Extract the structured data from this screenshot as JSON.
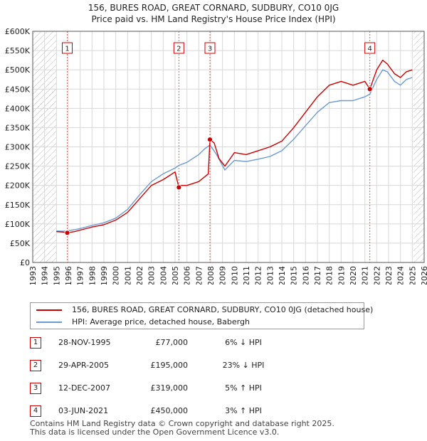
{
  "title_line1": "156, BURES ROAD, GREAT CORNARD, SUDBURY, CO10 0JG",
  "title_line2": "Price paid vs. HM Land Registry's House Price Index (HPI)",
  "colors": {
    "property": "#cc0000",
    "hpi": "#6b9bd2",
    "hatch": "#bbbbbb",
    "grid": "#d8d8d8",
    "marker_line": "#e06060"
  },
  "legend": {
    "property_label": "156, BURES ROAD, GREAT CORNARD, SUDBURY, CO10 0JG (detached house)",
    "hpi_label": "HPI: Average price, detached house, Babergh"
  },
  "transactions": [
    {
      "num": "1",
      "date": "28-NOV-1995",
      "price": "£77,000",
      "hpi": "6% ↓ HPI"
    },
    {
      "num": "2",
      "date": "29-APR-2005",
      "price": "£195,000",
      "hpi": "23% ↓ HPI"
    },
    {
      "num": "3",
      "date": "12-DEC-2007",
      "price": "£319,000",
      "hpi": "5% ↑ HPI"
    },
    {
      "num": "4",
      "date": "03-JUN-2021",
      "price": "£450,000",
      "hpi": "3% ↑ HPI"
    }
  ],
  "footer": {
    "line1": "Contains HM Land Registry data © Crown copyright and database right 2025.",
    "line2": "This data is licensed under the Open Government Licence v3.0."
  },
  "chart_data": {
    "type": "line",
    "title": "156, BURES ROAD, GREAT CORNARD, SUDBURY, CO10 0JG — Price paid vs. HM Land Registry's House Price Index (HPI)",
    "xlabel": "",
    "ylabel": "",
    "xlim": [
      1993,
      2026
    ],
    "ylim": [
      0,
      600000
    ],
    "x_ticks": [
      1993,
      1994,
      1995,
      1996,
      1997,
      1998,
      1999,
      2000,
      2001,
      2002,
      2003,
      2004,
      2005,
      2006,
      2007,
      2008,
      2009,
      2010,
      2011,
      2012,
      2013,
      2014,
      2015,
      2016,
      2017,
      2018,
      2019,
      2020,
      2021,
      2022,
      2023,
      2024,
      2025,
      2026
    ],
    "y_ticks": [
      0,
      50000,
      100000,
      150000,
      200000,
      250000,
      300000,
      350000,
      400000,
      450000,
      500000,
      550000,
      600000
    ],
    "y_tick_labels": [
      "£0",
      "£50K",
      "£100K",
      "£150K",
      "£200K",
      "£250K",
      "£300K",
      "£350K",
      "£400K",
      "£450K",
      "£500K",
      "£550K",
      "£600K"
    ],
    "hatched_ranges": [
      [
        1993,
        1995.0
      ],
      [
        2025.1,
        2026
      ]
    ],
    "series": [
      {
        "name": "156, BURES ROAD, GREAT CORNARD, SUDBURY, CO10 0JG (detached house)",
        "x": [
          1995.0,
          1995.5,
          1995.91,
          1996.5,
          1997,
          1998,
          1999,
          2000,
          2001,
          2002,
          2003,
          2004,
          2004.5,
          2005.0,
          2005.32,
          2005.33,
          2006,
          2007,
          2007.8,
          2007.94,
          2008.3,
          2008.7,
          2009.2,
          2010,
          2011,
          2012,
          2013,
          2014,
          2015,
          2016,
          2017,
          2018,
          2019,
          2020,
          2021.0,
          2021.42,
          2022,
          2022.5,
          2022.9,
          2023.5,
          2024,
          2024.5,
          2025.0
        ],
        "y": [
          80000,
          79000,
          77000,
          80000,
          84000,
          92000,
          98000,
          110000,
          130000,
          165000,
          200000,
          215000,
          225000,
          235000,
          195000,
          200000,
          200000,
          210000,
          230000,
          319000,
          310000,
          270000,
          250000,
          285000,
          280000,
          290000,
          300000,
          315000,
          350000,
          390000,
          430000,
          460000,
          470000,
          460000,
          470000,
          450000,
          500000,
          525000,
          515000,
          490000,
          480000,
          495000,
          500000
        ]
      },
      {
        "name": "HPI: Average price, detached house, Babergh",
        "x": [
          1995.0,
          1995.5,
          1995.91,
          1996.5,
          1997,
          1998,
          1999,
          2000,
          2001,
          2002,
          2003,
          2004,
          2005.0,
          2005.32,
          2006,
          2007,
          2007.5,
          2007.94,
          2008.5,
          2009.2,
          2010,
          2011,
          2012,
          2013,
          2014,
          2015,
          2016,
          2017,
          2018,
          2019,
          2020,
          2021.0,
          2021.42,
          2022,
          2022.5,
          2022.9,
          2023.5,
          2024,
          2024.5,
          2025.0
        ],
        "y": [
          82000,
          81000,
          82000,
          85000,
          88000,
          96000,
          103000,
          115000,
          138000,
          175000,
          210000,
          230000,
          245000,
          252000,
          260000,
          280000,
          295000,
          305000,
          280000,
          240000,
          265000,
          262000,
          268000,
          275000,
          290000,
          320000,
          355000,
          390000,
          415000,
          420000,
          420000,
          430000,
          437000,
          475000,
          500000,
          495000,
          470000,
          460000,
          475000,
          480000
        ]
      }
    ],
    "markers": [
      {
        "label": "1",
        "x": 1995.91,
        "y": 77000
      },
      {
        "label": "2",
        "x": 2005.32,
        "y": 195000
      },
      {
        "label": "3",
        "x": 2007.94,
        "y": 319000
      },
      {
        "label": "4",
        "x": 2021.42,
        "y": 450000
      }
    ]
  }
}
